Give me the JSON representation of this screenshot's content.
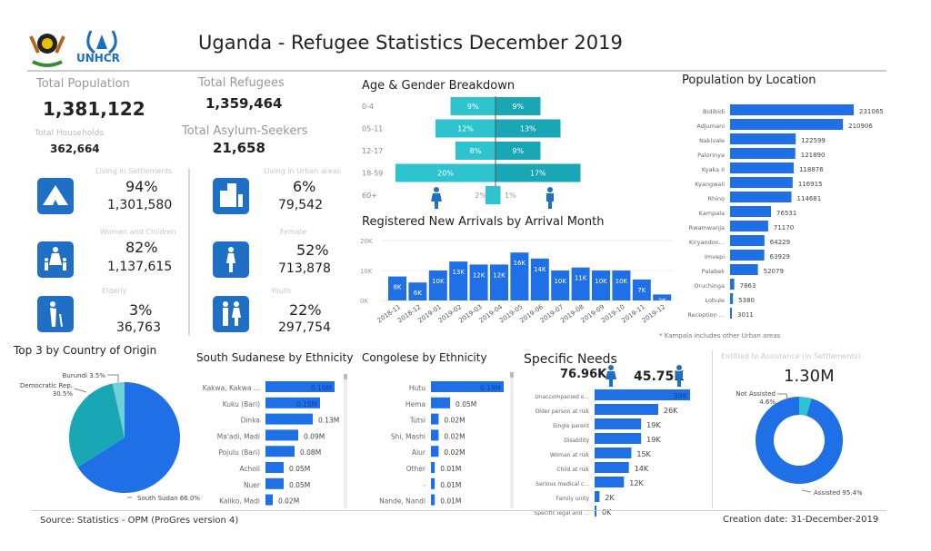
{
  "header": {
    "title": "Uganda  - Refugee Statistics December 2019",
    "logos": [
      "Uganda coat of arms",
      "UNHCR"
    ],
    "logo_text": "UNHCR"
  },
  "stats": {
    "total_population": {
      "label": "Total Population",
      "value": "1,381,122"
    },
    "total_refugees": {
      "label": "Total Refugees",
      "value": "1,359,464"
    },
    "total_households": {
      "label": "Total Households",
      "value": "362,664"
    },
    "total_asylum": {
      "label": "Total Asylum-Seekers",
      "value": "21,658"
    },
    "cards": [
      {
        "label": "Living in Settlements",
        "pct": "94%",
        "value": "1,301,580",
        "icon": "tent-icon"
      },
      {
        "label": "Women and Children",
        "pct": "82%",
        "value": "1,137,615",
        "icon": "family-icon"
      },
      {
        "label": "Elderly",
        "pct": "3%",
        "value": "36,763",
        "icon": "elderly-icon"
      },
      {
        "label": "Living in Urban areas",
        "pct": "6%",
        "value": "79,542",
        "icon": "building-icon"
      },
      {
        "label": "Female",
        "pct": "52%",
        "value": "713,878",
        "icon": "female-icon"
      },
      {
        "label": "Youth",
        "pct": "22%",
        "value": "297,754",
        "icon": "couple-icon"
      }
    ]
  },
  "colors": {
    "blue": "#1f6fe6",
    "teal": "#2ec4cf",
    "dark_teal": "#1aa7b5",
    "light_teal": "#6fd0d6",
    "icon_blue": "#1f6fc5"
  },
  "chart_data": [
    {
      "id": "age",
      "type": "bar",
      "title": "Age & Gender Breakdown",
      "categories": [
        "0-4",
        "05-11",
        "12-17",
        "18-59",
        "60+"
      ],
      "series": [
        {
          "name": "Female",
          "values": [
            9,
            12,
            8,
            20,
            2
          ]
        },
        {
          "name": "Male",
          "values": [
            9,
            13,
            9,
            17,
            1
          ]
        }
      ],
      "labels_left": [
        "9%",
        "12%",
        "8%",
        "20%",
        "2%"
      ],
      "labels_right": [
        "9%",
        "13%",
        "9%",
        "17%",
        "1%"
      ]
    },
    {
      "id": "arrivals",
      "type": "bar",
      "title": "Registered New Arrivals by Arrival Month",
      "categories": [
        "2018-11",
        "2018-12",
        "2019-01",
        "2019-02",
        "2019-03",
        "2019-04",
        "2019-05",
        "2019-06",
        "2019-07",
        "2019-08",
        "2019-09",
        "2019-10",
        "2019-11",
        "2019-12"
      ],
      "values": [
        8,
        6,
        10,
        13,
        12,
        12,
        16,
        14,
        10,
        11,
        10,
        10,
        7,
        2
      ],
      "labels": [
        "8K",
        "6K",
        "10K",
        "13K",
        "12K",
        "12K",
        "16K",
        "14K",
        "10K",
        "11K",
        "10K",
        "10K",
        "7K",
        "2K"
      ],
      "yticks": [
        "0K",
        "10K",
        "20K"
      ],
      "ylim": [
        0,
        20
      ],
      "grid": true
    },
    {
      "id": "location",
      "type": "bar",
      "title": "Population by Location",
      "categories": [
        "Bidibidi",
        "Adjumani",
        "Nakivale",
        "Palorinya",
        "Kyaka II",
        "Kyangwali",
        "Rhino",
        "Kampala",
        "Rwamwanja",
        "Kiryandon...",
        "Imvepi",
        "Palabek",
        "Oruchinga",
        "Lobule",
        "Reception ..."
      ],
      "values": [
        231065,
        210906,
        122599,
        121890,
        118876,
        116915,
        114681,
        76531,
        71170,
        64229,
        63929,
        52079,
        7863,
        5380,
        3011
      ],
      "note": "* Kampala  includes other Urban areas"
    },
    {
      "id": "origin",
      "type": "pie",
      "title": "Top 3 by Country of Origin",
      "categories": [
        "South Sudan",
        "Democratic Rep.",
        "Burundi"
      ],
      "values": [
        66.0,
        30.5,
        3.5
      ],
      "labels": [
        "South Sudan 66.0%",
        "Democratic Rep.",
        "30.5%",
        "Burundi 3.5%"
      ]
    },
    {
      "id": "ssd",
      "type": "bar",
      "title": "South Sudanese by Ethnicity",
      "categories": [
        "Kakwa, Kakwa ...",
        "Kuku (Bari)",
        "Dinka",
        "Ma'adi, Madi",
        "Pojulu (Bari)",
        "Acholi",
        "Nuer",
        "Kaliko, Madi"
      ],
      "values": [
        0.19,
        0.15,
        0.13,
        0.09,
        0.08,
        0.05,
        0.05,
        0.02
      ],
      "labels": [
        "0.19M",
        "0.15M",
        "0.13M",
        "0.09M",
        "0.08M",
        "0.05M",
        "0.05M",
        "0.02M"
      ]
    },
    {
      "id": "cod",
      "type": "bar",
      "title": "Congolese by Ethnicity",
      "categories": [
        "Hutu",
        "Hema",
        "Tutsi",
        "Shi, Mashi",
        "Alur",
        "Other",
        "-",
        "Nande, Nandi"
      ],
      "values": [
        0.19,
        0.05,
        0.02,
        0.02,
        0.02,
        0.01,
        0.01,
        0.01
      ],
      "labels": [
        "0.19M",
        "0.05M",
        "0.02M",
        "0.02M",
        "0.02M",
        "0.01M",
        "0.01M",
        "0.01M"
      ]
    },
    {
      "id": "needs",
      "type": "bar",
      "title": "Specific Needs",
      "female_total": "76.96K",
      "male_total": "45.75K",
      "categories": [
        "Unaccompanied o...",
        "Older person at risk",
        "Single parent",
        "Disability",
        "Woman at risk",
        "Child at risk",
        "Serious medical c...",
        "Family unity",
        "Specific legal and ..."
      ],
      "values": [
        39,
        26,
        19,
        19,
        15,
        14,
        12,
        2,
        0
      ],
      "labels": [
        "39K",
        "26K",
        "19K",
        "19K",
        "15K",
        "14K",
        "12K",
        "2K",
        "0K"
      ]
    },
    {
      "id": "assist",
      "type": "pie",
      "title": "Entitled to Assistance (in Settlements)",
      "total": "1.30M",
      "categories": [
        "Not Assisted",
        "Assisted"
      ],
      "values": [
        4.6,
        95.4
      ],
      "labels": [
        "Not Assisted",
        "4.6%",
        "Assisted 95.4%"
      ]
    }
  ],
  "footer": {
    "source": "Source: Statistics - OPM (ProGres version 4)",
    "created": "Creation date: 31-December-2019"
  }
}
